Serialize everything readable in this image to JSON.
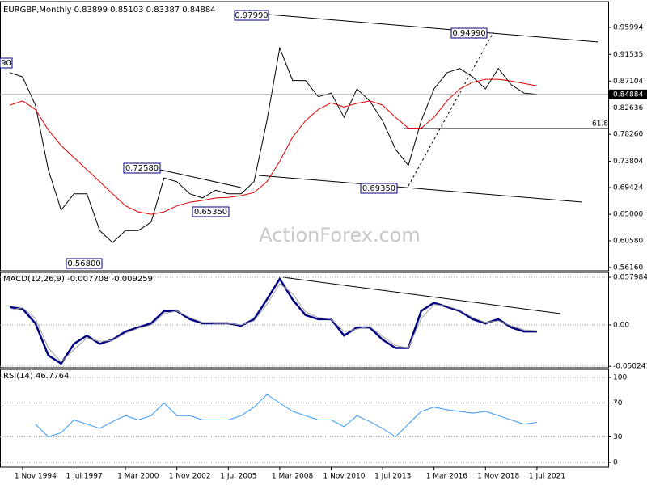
{
  "chart_data": {
    "type": "line",
    "title": "EURGBP,Monthly  0.83899 0.85103 0.83387 0.84884",
    "watermark": "ActionForex.com",
    "categories": [
      null,
      "1 Nov 1994",
      null,
      null,
      null,
      "1 Jul 1997",
      null,
      null,
      null,
      "1 Mar 2000",
      null,
      null,
      null,
      "1 Nov 2002",
      null,
      null,
      null,
      "1 Jul 2005",
      null,
      null,
      null,
      "1 Mar 2008",
      null,
      null,
      null,
      "1 Nov 2010",
      null,
      null,
      null,
      "1 Jul 2013",
      null,
      null,
      null,
      "1 Mar 2016",
      null,
      null,
      null,
      "1 Nov 2018",
      null,
      null,
      null,
      "1 Jul 2021"
    ],
    "series": [
      {
        "color": "#000000",
        "values": [
          0.885,
          0.878,
          0.831,
          0.724,
          0.657,
          0.684,
          0.684,
          0.623,
          0.603,
          0.623,
          0.623,
          0.637,
          0.71,
          0.704,
          0.684,
          0.677,
          0.69,
          0.684,
          0.684,
          0.704,
          0.805,
          0.926,
          0.872,
          0.872,
          0.845,
          0.851,
          0.811,
          0.858,
          0.838,
          0.805,
          0.758,
          0.731,
          0.805,
          0.858,
          0.885,
          0.892,
          0.878,
          0.858,
          0.892,
          0.865,
          0.851,
          0.849
        ]
      },
      {
        "color": "#e00000",
        "values": [
          0.831,
          0.838,
          0.824,
          0.79,
          0.764,
          0.744,
          0.724,
          0.704,
          0.684,
          0.664,
          0.654,
          0.65,
          0.654,
          0.664,
          0.67,
          0.673,
          0.677,
          0.678,
          0.681,
          0.686,
          0.704,
          0.738,
          0.778,
          0.805,
          0.824,
          0.835,
          0.828,
          0.834,
          0.838,
          0.831,
          0.811,
          0.793,
          0.793,
          0.811,
          0.838,
          0.858,
          0.869,
          0.874,
          0.874,
          0.871,
          0.867,
          0.863
        ]
      }
    ],
    "ylim": [
      0.5562,
      1.0029
    ],
    "yticks": [
      {
        "value": 0.95994,
        "label": "0.95994"
      },
      {
        "value": 0.91535,
        "label": "0.91535"
      },
      {
        "value": 0.87104,
        "label": "0.87104"
      },
      {
        "value": 0.82636,
        "label": "0.82636"
      },
      {
        "value": 0.7826,
        "label": "0.78260"
      },
      {
        "value": 0.73804,
        "label": "0.73804"
      },
      {
        "value": 0.69424,
        "label": "0.69424"
      },
      {
        "value": 0.65,
        "label": "0.65000"
      },
      {
        "value": 0.6058,
        "label": "0.60580"
      },
      {
        "value": 0.5616,
        "label": "0.56160"
      }
    ],
    "current_price": {
      "value": 0.84884,
      "label": "0.84884"
    },
    "fib_label": "61.8",
    "annotations": [
      "0.97990",
      "0.94990",
      "0.72580",
      "0.65350",
      "0.69350",
      "0.56800",
      "90"
    ],
    "indicators": [
      {
        "title": "MACD(12,26,9) -0.007708 -0.009259",
        "series": [
          {
            "color": "#000080",
            "values": [
              0.0216,
              0.0197,
              0.002,
              -0.037,
              -0.047,
              -0.023,
              -0.013,
              -0.023,
              -0.018,
              -0.008,
              -0.003,
              0.002,
              0.017,
              0.017,
              0.007,
              0.002,
              0.002,
              0.002,
              -0.001,
              0.007,
              0.031,
              0.056,
              0.031,
              0.012,
              0.007,
              0.007,
              -0.013,
              -0.003,
              -0.003,
              -0.018,
              -0.028,
              -0.028,
              0.017,
              0.027,
              0.022,
              0.017,
              0.007,
              0.002,
              0.007,
              -0.003,
              -0.008,
              -0.008
            ]
          },
          {
            "color": "#a0a0a0",
            "values": [
              0.018,
              0.021,
              0.008,
              -0.028,
              -0.045,
              -0.03,
              -0.016,
              -0.02,
              -0.019,
              -0.01,
              -0.004,
              0.0,
              0.014,
              0.017,
              0.009,
              0.003,
              0.002,
              0.002,
              0.0,
              0.005,
              0.025,
              0.05,
              0.038,
              0.016,
              0.009,
              0.007,
              -0.008,
              -0.005,
              -0.002,
              -0.014,
              -0.025,
              -0.028,
              0.008,
              0.025,
              0.023,
              0.018,
              0.009,
              0.003,
              0.005,
              -0.001,
              -0.006,
              -0.007
            ]
          }
        ],
        "ylim": [
          -0.0521,
          0.0639
        ],
        "yticks": [
          0.057984,
          {
            "value": 0,
            "label": "0.00"
          },
          -0.050241
        ]
      },
      {
        "title": "RSI(14) 46.7764",
        "series": [
          {
            "color": "#3399ff",
            "values": [
              null,
              null,
              45,
              30,
              35,
              50,
              45,
              40,
              48,
              55,
              50,
              55,
              70,
              55,
              55,
              50,
              50,
              50,
              55,
              65,
              80,
              70,
              60,
              55,
              50,
              50,
              42,
              55,
              48,
              40,
              30,
              45,
              60,
              65,
              62,
              60,
              58,
              60,
              55,
              50,
              45,
              47
            ]
          }
        ],
        "ylim": [
          -5.7,
          109.5
        ],
        "yticks": [
          100,
          70,
          30,
          0
        ]
      }
    ]
  }
}
